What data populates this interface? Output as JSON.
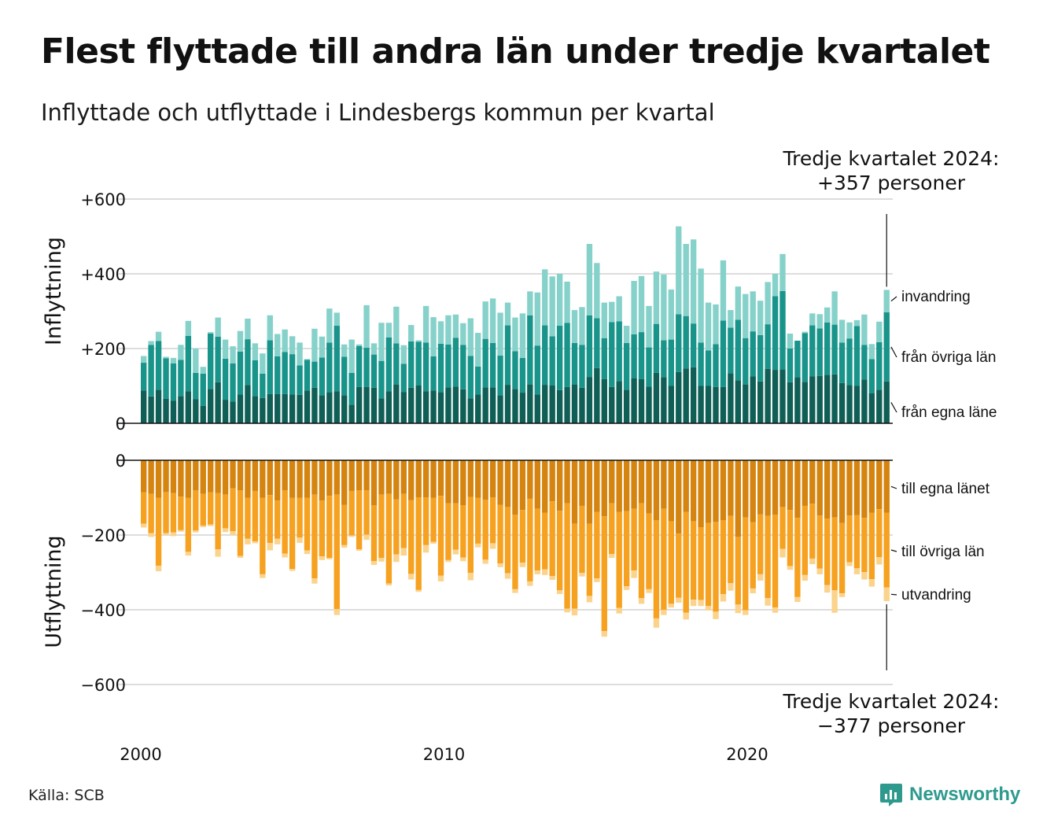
{
  "title": "Flest flyttade till andra län under tredje kvartalet",
  "subtitle": "Inflyttade och utflyttade i Lindesbergs kommun per kvartal",
  "callout_top": [
    "Tredje kvartalet 2024:",
    "+357 personer"
  ],
  "callout_bottom": [
    "Tredje kvartalet 2024:",
    "−377 personer"
  ],
  "source": "Källa: SCB",
  "brand": "Newsworthy",
  "colors": {
    "in_same_county": "#0f5f57",
    "in_other_counties": "#18948a",
    "in_immigration": "#86d2cb",
    "out_same_county": "#d4840f",
    "out_other_counties": "#f6a11f",
    "out_emigration": "#fbd38c",
    "grid": "#dddddd",
    "brand": "#2e9a8e"
  },
  "chart_data": [
    {
      "type": "bar",
      "stacked": true,
      "ylabel": "Inflyttning",
      "ylim": [
        0,
        600
      ],
      "yticks": [
        0,
        200,
        400,
        600
      ],
      "ytick_labels": [
        "0",
        "+200",
        "+400",
        "+600"
      ],
      "x_start": "2000 Q1",
      "x_end": "2024 Q3",
      "xticks": [
        "2000",
        "2010",
        "2020"
      ],
      "grid": true,
      "series": [
        {
          "name": "från egna läne",
          "values": [
            88,
            72,
            90,
            66,
            60,
            73,
            86,
            65,
            47,
            92,
            110,
            63,
            58,
            77,
            102,
            73,
            68,
            78,
            78,
            78,
            77,
            76,
            88,
            95,
            75,
            83,
            86,
            75,
            50,
            97,
            97,
            95,
            67,
            86,
            104,
            84,
            95,
            101,
            86,
            88,
            83,
            96,
            98,
            91,
            67,
            77,
            96,
            96,
            75,
            103,
            92,
            82,
            104,
            77,
            103,
            101,
            89,
            97,
            104,
            95,
            124,
            148,
            118,
            97,
            113,
            90,
            120,
            118,
            98,
            135,
            123,
            100,
            137,
            147,
            150,
            100,
            100,
            97,
            97,
            134,
            115,
            104,
            126,
            112,
            146,
            143,
            144,
            110,
            123,
            111,
            126,
            127,
            130,
            131,
            108,
            102,
            100,
            117,
            80,
            90,
            112
          ]
        },
        {
          "name": "från övriga län",
          "values": [
            74,
            138,
            130,
            108,
            100,
            97,
            148,
            70,
            86,
            148,
            122,
            110,
            102,
            115,
            123,
            96,
            65,
            144,
            101,
            113,
            108,
            79,
            82,
            70,
            101,
            133,
            175,
            103,
            85,
            110,
            105,
            89,
            100,
            144,
            110,
            75,
            124,
            117,
            130,
            91,
            130,
            115,
            131,
            119,
            113,
            75,
            130,
            119,
            106,
            159,
            101,
            93,
            185,
            131,
            159,
            132,
            172,
            172,
            111,
            115,
            165,
            133,
            110,
            174,
            160,
            125,
            118,
            126,
            105,
            131,
            99,
            124,
            155,
            140,
            117,
            116,
            95,
            115,
            178,
            122,
            162,
            124,
            120,
            124,
            119,
            197,
            210,
            90,
            98,
            130,
            136,
            127,
            140,
            133,
            108,
            125,
            160,
            93,
            92,
            127,
            185
          ]
        },
        {
          "name": "invandring",
          "values": [
            18,
            10,
            25,
            4,
            15,
            40,
            40,
            65,
            18,
            4,
            51,
            51,
            46,
            55,
            55,
            45,
            54,
            67,
            60,
            60,
            48,
            61,
            2,
            88,
            56,
            91,
            35,
            33,
            89,
            4,
            114,
            30,
            102,
            39,
            98,
            50,
            44,
            4,
            98,
            105,
            60,
            78,
            62,
            58,
            101,
            90,
            100,
            119,
            115,
            61,
            90,
            119,
            64,
            142,
            150,
            160,
            139,
            110,
            88,
            101,
            191,
            148,
            95,
            54,
            67,
            46,
            143,
            150,
            111,
            140,
            176,
            134,
            235,
            193,
            225,
            198,
            128,
            106,
            161,
            47,
            89,
            118,
            107,
            92,
            113,
            60,
            99,
            40,
            0,
            4,
            32,
            38,
            40,
            89,
            61,
            43,
            16,
            81,
            40,
            55,
            60
          ]
        }
      ],
      "series_labels": [
        "invandring",
        "från övriga län",
        "från egna läne"
      ]
    },
    {
      "type": "bar",
      "stacked": true,
      "ylabel": "Utflyttning",
      "ylim": [
        -700,
        0
      ],
      "yticks": [
        -600,
        -400,
        -200,
        0
      ],
      "ytick_labels": [
        "−600",
        "−400",
        "−200",
        "0"
      ],
      "grid": true,
      "series": [
        {
          "name": "till egna länet",
          "values": [
            -86,
            -90,
            -100,
            -85,
            -88,
            -97,
            -100,
            -80,
            -90,
            -86,
            -88,
            -92,
            -75,
            -80,
            -100,
            -82,
            -100,
            -93,
            -108,
            -80,
            -100,
            -100,
            -100,
            -92,
            -108,
            -95,
            -92,
            -119,
            -82,
            -80,
            -80,
            -120,
            -92,
            -90,
            -105,
            -90,
            -107,
            -99,
            -99,
            -100,
            -95,
            -115,
            -115,
            -120,
            -98,
            -100,
            -106,
            -99,
            -119,
            -125,
            -146,
            -133,
            -103,
            -130,
            -140,
            -110,
            -135,
            -115,
            -170,
            -122,
            -170,
            -138,
            -150,
            -115,
            -138,
            -136,
            -130,
            -115,
            -142,
            -160,
            -130,
            -163,
            -196,
            -138,
            -163,
            -179,
            -168,
            -165,
            -160,
            -149,
            -205,
            -153,
            -166,
            -145,
            -149,
            -146,
            -125,
            -133,
            -154,
            -122,
            -116,
            -148,
            -156,
            -153,
            -168,
            -148,
            -147,
            -154,
            -140,
            -131,
            -140
          ]
        },
        {
          "name": "till övriga län",
          "values": [
            -84,
            -105,
            -182,
            -110,
            -105,
            -90,
            -145,
            -108,
            -85,
            -86,
            -150,
            -90,
            -115,
            -176,
            -110,
            -135,
            -205,
            -128,
            -102,
            -170,
            -191,
            -107,
            -141,
            -224,
            -149,
            -166,
            -306,
            -108,
            -119,
            -158,
            -119,
            -150,
            -169,
            -240,
            -147,
            -145,
            -197,
            -248,
            -128,
            -118,
            -214,
            -152,
            -124,
            -140,
            -203,
            -123,
            -160,
            -123,
            -157,
            -177,
            -199,
            -141,
            -221,
            -165,
            -152,
            -200,
            -213,
            -282,
            -227,
            -179,
            -193,
            -178,
            -307,
            -136,
            -257,
            -201,
            -165,
            -254,
            -203,
            -263,
            -270,
            -221,
            -172,
            -270,
            -210,
            -195,
            -222,
            -240,
            -198,
            -180,
            -181,
            -248,
            -177,
            -160,
            -220,
            -248,
            -112,
            -150,
            -212,
            -185,
            -147,
            -142,
            -178,
            -195,
            -188,
            -125,
            -142,
            -145,
            -178,
            -128,
            -200
          ]
        },
        {
          "name": "utvandring",
          "values": [
            -10,
            -10,
            -15,
            -5,
            -10,
            -4,
            -10,
            -5,
            -4,
            -4,
            -20,
            -10,
            -10,
            -5,
            -15,
            -5,
            -10,
            -20,
            -15,
            -10,
            -5,
            -14,
            -10,
            -14,
            -10,
            -4,
            -16,
            -7,
            -4,
            -4,
            -14,
            -10,
            -10,
            -5,
            -20,
            -20,
            -15,
            -5,
            -20,
            -5,
            -15,
            -5,
            -13,
            -10,
            -20,
            -10,
            -11,
            -15,
            -10,
            -15,
            -10,
            -12,
            -12,
            -10,
            -15,
            -10,
            -10,
            -10,
            -18,
            -10,
            -17,
            -10,
            -15,
            -10,
            -15,
            -10,
            -20,
            -15,
            -10,
            -25,
            -14,
            -10,
            -13,
            -18,
            -17,
            -16,
            -12,
            -20,
            -20,
            -20,
            -23,
            -13,
            -13,
            -17,
            -20,
            -14,
            -23,
            -10,
            -13,
            -15,
            -15,
            -15,
            -20,
            -60,
            -10,
            -10,
            -16,
            -20,
            -20,
            -20,
            -37
          ]
        }
      ],
      "series_labels": [
        "till egna länet",
        "till övriga län",
        "utvandring"
      ]
    }
  ]
}
